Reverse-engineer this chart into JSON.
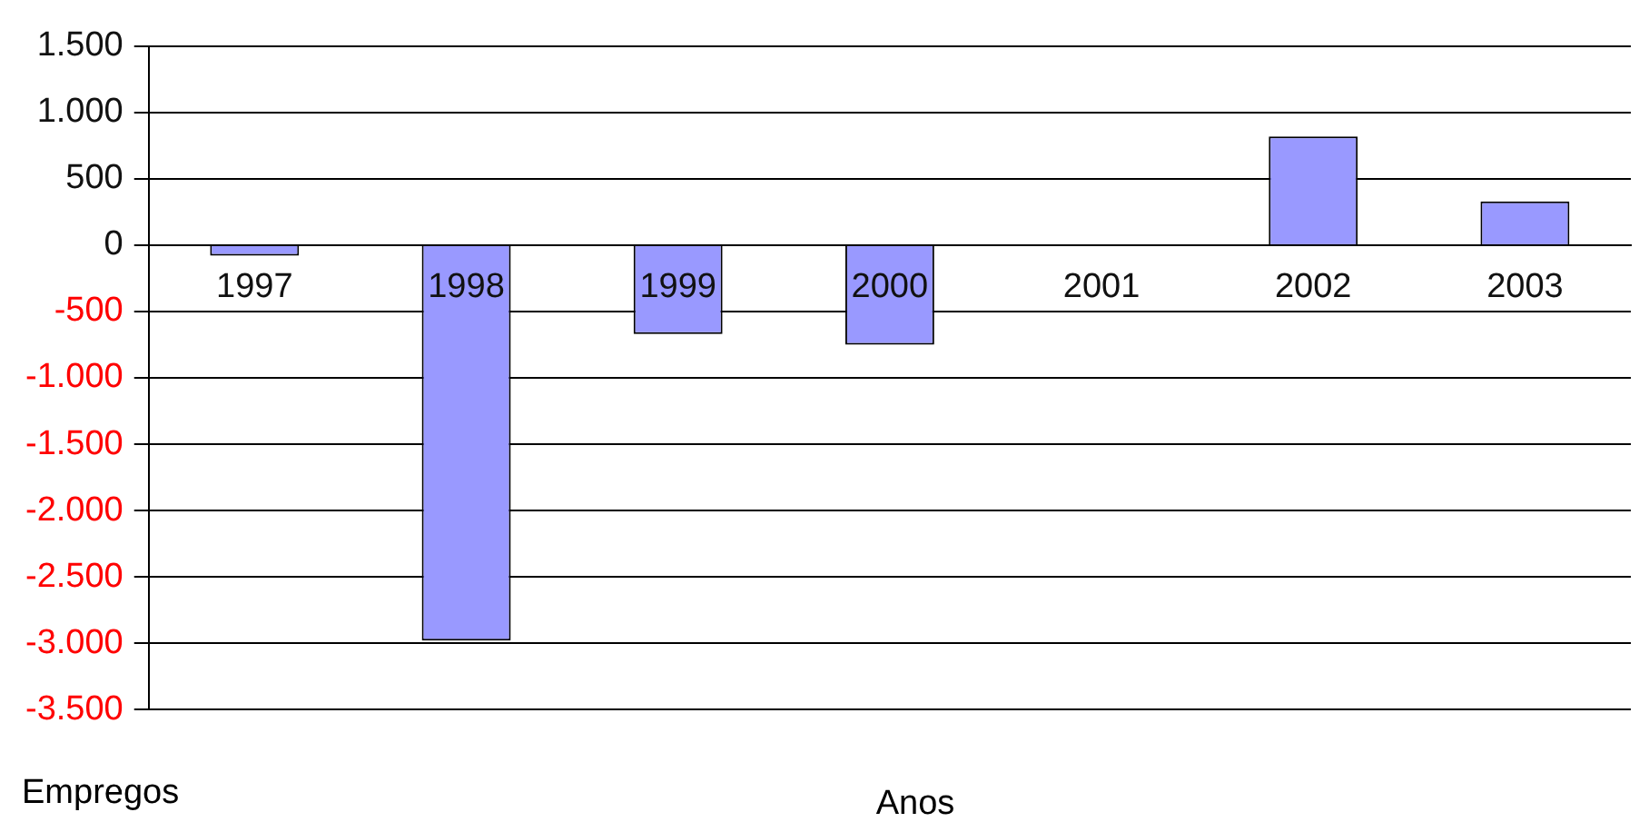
{
  "chart_data": {
    "type": "bar",
    "xlabel": "Anos",
    "ylabel": "Empregos",
    "categories": [
      "1997",
      "1998",
      "1999",
      "2000",
      "2001",
      "2002",
      "2003"
    ],
    "values": [
      -80,
      -2980,
      -670,
      -750,
      0,
      820,
      330
    ],
    "color": "#9999ff",
    "ylim": [
      -3500,
      1500
    ],
    "yticks": [
      {
        "value": -3500,
        "label": "-3.500"
      },
      {
        "value": -3000,
        "label": "-3.000"
      },
      {
        "value": -2500,
        "label": "-2.500"
      },
      {
        "value": -2000,
        "label": "-2.000"
      },
      {
        "value": -1500,
        "label": "-1.500"
      },
      {
        "value": -1000,
        "label": "-1.000"
      },
      {
        "value": -500,
        "label": "-500"
      },
      {
        "value": 0,
        "label": "0"
      },
      {
        "value": 500,
        "label": "500"
      },
      {
        "value": 1000,
        "label": "1.000"
      },
      {
        "value": 1500,
        "label": "1.500"
      }
    ],
    "grid": "y"
  }
}
